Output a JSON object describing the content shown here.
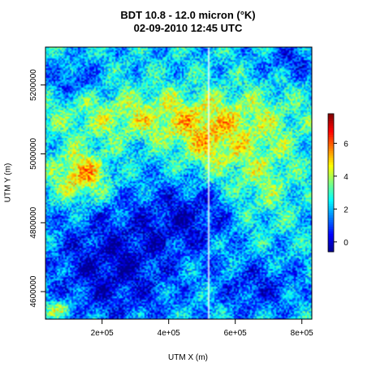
{
  "chart_data": {
    "type": "heatmap",
    "title": "BDT 10.8 - 12.0 micron (°K)",
    "subtitle": "02-09-2010 12:45 UTC",
    "xlabel": "UTM X (m)",
    "ylabel": "UTM Y (m)",
    "xlim": [
      30000,
      830000
    ],
    "ylim": [
      4520000,
      5310000
    ],
    "x_ticks": [
      200000,
      400000,
      600000,
      800000
    ],
    "x_tick_labels": [
      "2e+05",
      "4e+05",
      "6e+05",
      "8e+05"
    ],
    "y_ticks": [
      4600000,
      4800000,
      5000000,
      5200000
    ],
    "y_tick_labels": [
      "4600000",
      "4800000",
      "5000000",
      "5200000"
    ],
    "colorbar": {
      "range": [
        -0.6,
        7.8
      ],
      "ticks": [
        0,
        2,
        4,
        6
      ],
      "tick_labels": [
        "0",
        "2",
        "4",
        "6"
      ],
      "colors": [
        "#00008f",
        "#0000ff",
        "#0080ff",
        "#00ffff",
        "#80ff80",
        "#ffff00",
        "#ff8000",
        "#ff0000",
        "#800000"
      ]
    },
    "grid": false,
    "regions_approx": [
      {
        "area": "west, around x=1e5-1.6e5, y=4.85e6-5.0e6",
        "value": 5.5
      },
      {
        "area": "north band, y=5.05e6-5.2e6",
        "value": 4.0
      },
      {
        "area": "southwest and south-center",
        "value": 0.8
      },
      {
        "area": "east interior",
        "value": 3.0
      }
    ]
  }
}
